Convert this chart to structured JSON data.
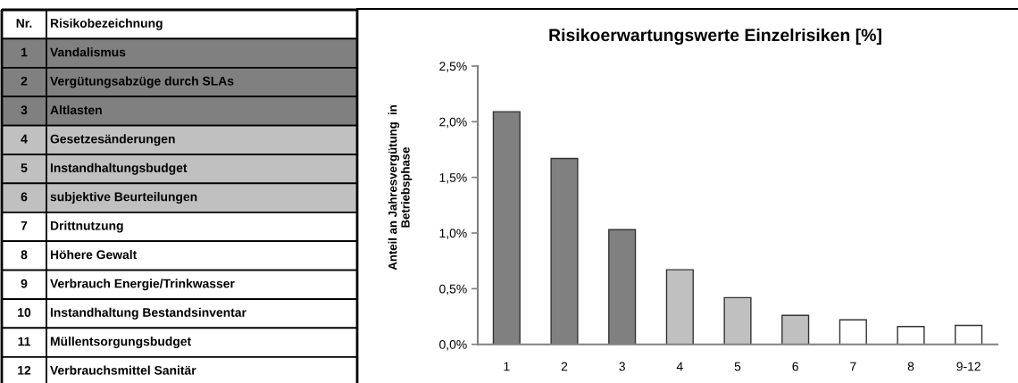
{
  "chart_data": {
    "type": "bar",
    "title": "Risikoerwartungswerte Einzelrisiken [%]",
    "ylabel": "Anteil an Jahresvergütung  in\nBetriebsphase",
    "categories": [
      "1",
      "2",
      "3",
      "4",
      "5",
      "6",
      "7",
      "8",
      "9-12"
    ],
    "values": [
      2.09,
      1.67,
      1.03,
      0.67,
      0.42,
      0.26,
      0.22,
      0.16,
      0.17
    ],
    "colors": [
      "#808080",
      "#808080",
      "#808080",
      "#c0c0c0",
      "#c0c0c0",
      "#c0c0c0",
      "#ffffff",
      "#ffffff",
      "#ffffff"
    ],
    "ylim": [
      0,
      2.5
    ],
    "yticks": [
      {
        "value": 0,
        "label": "0,0%"
      },
      {
        "value": 0.5,
        "label": "0,5%"
      },
      {
        "value": 1,
        "label": "1,0%"
      },
      {
        "value": 1.5,
        "label": "1,5%"
      },
      {
        "value": 2,
        "label": "2,0%"
      },
      {
        "value": 2.5,
        "label": "2,5%"
      }
    ],
    "annotations": [
      "Nr.",
      "Risikobezeichnung",
      "1",
      "Vandalismus",
      "2",
      "Vergütungsabzüge durch SLAs",
      "3",
      "Altlasten",
      "4",
      "Gesetzesänderungen",
      "5",
      "Instandhaltungsbudget",
      "6",
      "subjektive Beurteilungen",
      "7",
      "Drittnutzung",
      "8",
      "Höhere Gewalt",
      "9",
      "Verbrauch Energie/Trinkwasser",
      "10",
      "Instandhaltung Bestandsinventar",
      "11",
      "Müllentsorgungsbudget",
      "12",
      "Verbrauchsmittel Sanitär"
    ]
  }
}
